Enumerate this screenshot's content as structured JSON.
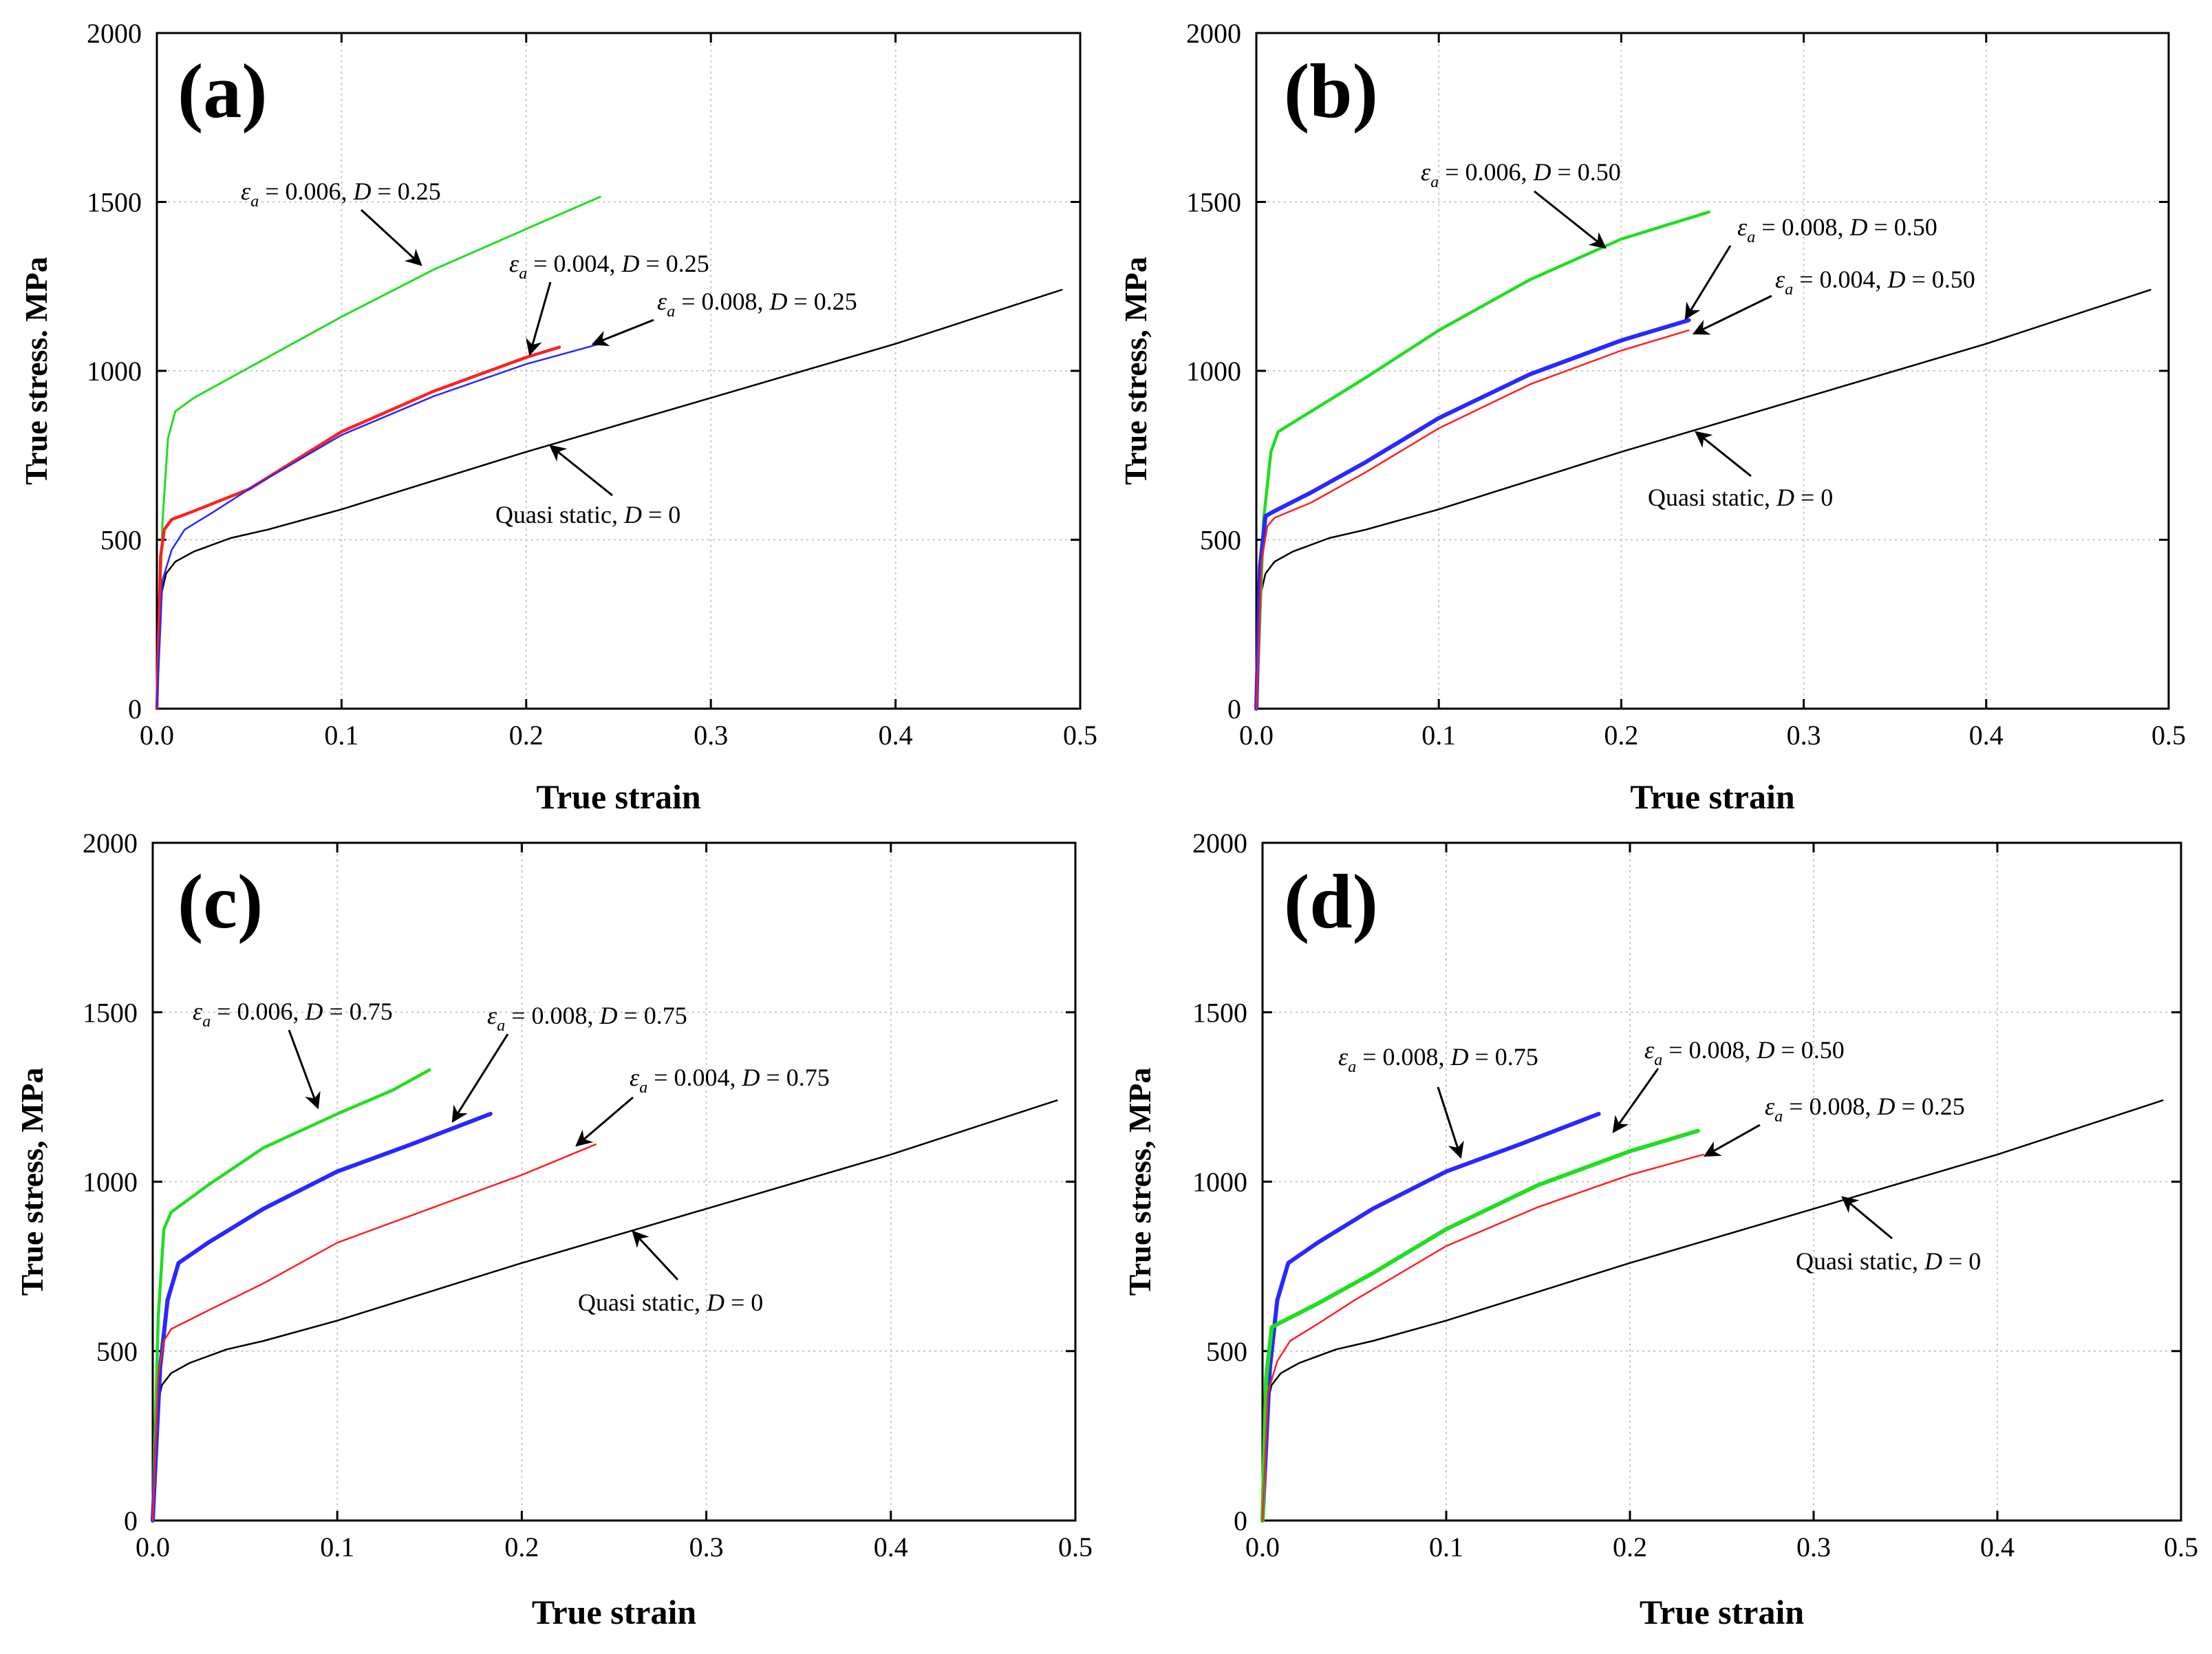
{
  "chart_data": [
    {
      "id": "a",
      "type": "line",
      "panel_label": "(a)",
      "xlabel": "True strain",
      "ylabel": "True stress. MPa",
      "xlim": [
        0,
        0.5
      ],
      "ylim": [
        0,
        2000
      ],
      "xticks": [
        "0.0",
        "0.1",
        "0.2",
        "0.3",
        "0.4",
        "0.5"
      ],
      "yticks": [
        "0",
        "500",
        "1000",
        "1500",
        "2000"
      ],
      "grid": true,
      "series": [
        {
          "name": "Quasi static, D = 0",
          "color": "#000000",
          "width": 2.5,
          "points": [
            [
              0,
              0
            ],
            [
              0.002,
              330
            ],
            [
              0.005,
              400
            ],
            [
              0.01,
              435
            ],
            [
              0.02,
              465
            ],
            [
              0.04,
              505
            ],
            [
              0.06,
              530
            ],
            [
              0.1,
              590
            ],
            [
              0.2,
              760
            ],
            [
              0.3,
              920
            ],
            [
              0.4,
              1080
            ],
            [
              0.49,
              1240
            ]
          ]
        },
        {
          "name": "εa = 0.006, D = 0.25",
          "color": "#22dd22",
          "width": 3,
          "points": [
            [
              0,
              0
            ],
            [
              0.003,
              550
            ],
            [
              0.006,
              800
            ],
            [
              0.01,
              880
            ],
            [
              0.02,
              920
            ],
            [
              0.05,
              1010
            ],
            [
              0.1,
              1160
            ],
            [
              0.15,
              1300
            ],
            [
              0.2,
              1420
            ],
            [
              0.24,
              1515
            ]
          ]
        },
        {
          "name": "εa = 0.004, D = 0.25",
          "color": "#ff2020",
          "width": 4.5,
          "points": [
            [
              0,
              0
            ],
            [
              0.002,
              450
            ],
            [
              0.004,
              530
            ],
            [
              0.008,
              560
            ],
            [
              0.02,
              585
            ],
            [
              0.05,
              650
            ],
            [
              0.1,
              820
            ],
            [
              0.15,
              940
            ],
            [
              0.2,
              1040
            ],
            [
              0.218,
              1070
            ]
          ]
        },
        {
          "name": "εa = 0.008, D = 0.25",
          "color": "#2828ff",
          "width": 2.5,
          "points": [
            [
              0,
              0
            ],
            [
              0.003,
              380
            ],
            [
              0.008,
              470
            ],
            [
              0.015,
              530
            ],
            [
              0.03,
              580
            ],
            [
              0.05,
              650
            ],
            [
              0.1,
              810
            ],
            [
              0.15,
              925
            ],
            [
              0.2,
              1020
            ],
            [
              0.24,
              1080
            ]
          ]
        }
      ],
      "annotations": [
        {
          "pre": "= 0.006, ",
          "d": "D",
          "post": " = 0.25"
        },
        {
          "pre": "= 0.004, ",
          "d": "D",
          "post": " = 0.25"
        },
        {
          "pre": "= 0.008, ",
          "d": "D",
          "post": " = 0.25"
        },
        {
          "pre": "Quasi static, ",
          "d": "D",
          "post": " = 0"
        }
      ]
    },
    {
      "id": "b",
      "type": "line",
      "panel_label": "(b)",
      "xlabel": "True strain",
      "ylabel": "True stress, MPa",
      "xlim": [
        0,
        0.5
      ],
      "ylim": [
        0,
        2000
      ],
      "xticks": [
        "0.0",
        "0.1",
        "0.2",
        "0.3",
        "0.4",
        "0.5"
      ],
      "yticks": [
        "0",
        "500",
        "1000",
        "1500",
        "2000"
      ],
      "grid": true,
      "series": [
        {
          "name": "Quasi static, D = 0",
          "color": "#000000",
          "width": 2.5,
          "points": [
            [
              0,
              0
            ],
            [
              0.002,
              330
            ],
            [
              0.005,
              400
            ],
            [
              0.01,
              435
            ],
            [
              0.02,
              465
            ],
            [
              0.04,
              505
            ],
            [
              0.06,
              530
            ],
            [
              0.1,
              590
            ],
            [
              0.2,
              760
            ],
            [
              0.3,
              920
            ],
            [
              0.4,
              1080
            ],
            [
              0.49,
              1240
            ]
          ]
        },
        {
          "name": "εa = 0.006, D = 0.50",
          "color": "#22dd22",
          "width": 4.5,
          "points": [
            [
              0,
              0
            ],
            [
              0.004,
              560
            ],
            [
              0.008,
              760
            ],
            [
              0.012,
              820
            ],
            [
              0.03,
              880
            ],
            [
              0.06,
              980
            ],
            [
              0.1,
              1120
            ],
            [
              0.15,
              1270
            ],
            [
              0.2,
              1390
            ],
            [
              0.248,
              1470
            ]
          ]
        },
        {
          "name": "εa = 0.008, D = 0.50",
          "color": "#2828ff",
          "width": 6,
          "points": [
            [
              0,
              0
            ],
            [
              0.002,
              420
            ],
            [
              0.005,
              570
            ],
            [
              0.01,
              585
            ],
            [
              0.03,
              640
            ],
            [
              0.06,
              730
            ],
            [
              0.1,
              860
            ],
            [
              0.15,
              990
            ],
            [
              0.2,
              1090
            ],
            [
              0.237,
              1150
            ]
          ]
        },
        {
          "name": "εa = 0.004, D = 0.50",
          "color": "#ff2020",
          "width": 2.5,
          "points": [
            [
              0,
              0
            ],
            [
              0.003,
              440
            ],
            [
              0.006,
              540
            ],
            [
              0.01,
              565
            ],
            [
              0.03,
              610
            ],
            [
              0.06,
              700
            ],
            [
              0.1,
              830
            ],
            [
              0.15,
              960
            ],
            [
              0.2,
              1060
            ],
            [
              0.237,
              1120
            ]
          ]
        }
      ],
      "annotations": [
        {
          "pre": "= 0.006, ",
          "d": "D",
          "post": " = 0.50"
        },
        {
          "pre": "= 0.008, ",
          "d": "D",
          "post": " = 0.50"
        },
        {
          "pre": "= 0.004, ",
          "d": "D",
          "post": " = 0.50"
        },
        {
          "pre": "Quasi static, ",
          "d": "D",
          "post": " = 0"
        }
      ]
    },
    {
      "id": "c",
      "type": "line",
      "panel_label": "(c)",
      "xlabel": "True strain",
      "ylabel": "True stress, MPa",
      "xlim": [
        0,
        0.5
      ],
      "ylim": [
        0,
        2000
      ],
      "xticks": [
        "0.0",
        "0.1",
        "0.2",
        "0.3",
        "0.4",
        "0.5"
      ],
      "yticks": [
        "0",
        "500",
        "1000",
        "1500",
        "2000"
      ],
      "grid": true,
      "series": [
        {
          "name": "Quasi static, D = 0",
          "color": "#000000",
          "width": 2.5,
          "points": [
            [
              0,
              0
            ],
            [
              0.002,
              330
            ],
            [
              0.005,
              400
            ],
            [
              0.01,
              435
            ],
            [
              0.02,
              465
            ],
            [
              0.04,
              505
            ],
            [
              0.06,
              530
            ],
            [
              0.1,
              590
            ],
            [
              0.2,
              760
            ],
            [
              0.3,
              920
            ],
            [
              0.4,
              1080
            ],
            [
              0.49,
              1240
            ]
          ]
        },
        {
          "name": "εa = 0.006, D = 0.75",
          "color": "#22dd22",
          "width": 4.5,
          "points": [
            [
              0,
              0
            ],
            [
              0.003,
              600
            ],
            [
              0.006,
              860
            ],
            [
              0.01,
              910
            ],
            [
              0.03,
              990
            ],
            [
              0.06,
              1100
            ],
            [
              0.1,
              1200
            ],
            [
              0.13,
              1270
            ],
            [
              0.15,
              1330
            ]
          ]
        },
        {
          "name": "εa = 0.008, D = 0.75",
          "color": "#2828ff",
          "width": 6,
          "points": [
            [
              0,
              0
            ],
            [
              0.004,
              450
            ],
            [
              0.008,
              650
            ],
            [
              0.014,
              760
            ],
            [
              0.03,
              820
            ],
            [
              0.06,
              920
            ],
            [
              0.1,
              1030
            ],
            [
              0.14,
              1110
            ],
            [
              0.183,
              1200
            ]
          ]
        },
        {
          "name": "εa = 0.004, D = 0.75",
          "color": "#ff2020",
          "width": 2.5,
          "points": [
            [
              0,
              0
            ],
            [
              0.003,
              430
            ],
            [
              0.006,
              530
            ],
            [
              0.01,
              565
            ],
            [
              0.03,
              620
            ],
            [
              0.06,
              700
            ],
            [
              0.1,
              820
            ],
            [
              0.15,
              920
            ],
            [
              0.2,
              1020
            ],
            [
              0.24,
              1110
            ]
          ]
        }
      ],
      "annotations": [
        {
          "pre": "= 0.006, ",
          "d": "D",
          "post": " = 0.75"
        },
        {
          "pre": "= 0.008, ",
          "d": "D",
          "post": " = 0.75"
        },
        {
          "pre": "= 0.004, ",
          "d": "D",
          "post": " = 0.75"
        },
        {
          "pre": "Quasi static, ",
          "d": "D",
          "post": " = 0"
        }
      ]
    },
    {
      "id": "d",
      "type": "line",
      "panel_label": "(d)",
      "xlabel": "True strain",
      "ylabel": "True stress, MPa",
      "xlim": [
        0,
        0.5
      ],
      "ylim": [
        0,
        2000
      ],
      "xticks": [
        "0.0",
        "0.1",
        "0.2",
        "0.3",
        "0.4",
        "0.5"
      ],
      "yticks": [
        "0",
        "500",
        "1000",
        "1500",
        "2000"
      ],
      "grid": true,
      "series": [
        {
          "name": "Quasi static, D = 0",
          "color": "#000000",
          "width": 2.5,
          "points": [
            [
              0,
              0
            ],
            [
              0.002,
              330
            ],
            [
              0.005,
              400
            ],
            [
              0.01,
              435
            ],
            [
              0.02,
              465
            ],
            [
              0.04,
              505
            ],
            [
              0.06,
              530
            ],
            [
              0.1,
              590
            ],
            [
              0.2,
              760
            ],
            [
              0.3,
              920
            ],
            [
              0.4,
              1080
            ],
            [
              0.49,
              1240
            ]
          ]
        },
        {
          "name": "εa = 0.008, D = 0.75",
          "color": "#2828ff",
          "width": 6,
          "points": [
            [
              0,
              0
            ],
            [
              0.004,
              450
            ],
            [
              0.008,
              650
            ],
            [
              0.014,
              760
            ],
            [
              0.03,
              820
            ],
            [
              0.06,
              920
            ],
            [
              0.1,
              1030
            ],
            [
              0.14,
              1110
            ],
            [
              0.183,
              1200
            ]
          ]
        },
        {
          "name": "εa = 0.008, D = 0.50",
          "color": "#22dd22",
          "width": 6,
          "points": [
            [
              0,
              0
            ],
            [
              0.002,
              420
            ],
            [
              0.005,
              570
            ],
            [
              0.01,
              585
            ],
            [
              0.03,
              640
            ],
            [
              0.06,
              730
            ],
            [
              0.1,
              860
            ],
            [
              0.15,
              990
            ],
            [
              0.2,
              1090
            ],
            [
              0.237,
              1150
            ]
          ]
        },
        {
          "name": "εa = 0.008, D = 0.25",
          "color": "#ff2020",
          "width": 2.5,
          "points": [
            [
              0,
              0
            ],
            [
              0.003,
              380
            ],
            [
              0.008,
              470
            ],
            [
              0.015,
              530
            ],
            [
              0.03,
              580
            ],
            [
              0.05,
              650
            ],
            [
              0.1,
              810
            ],
            [
              0.15,
              925
            ],
            [
              0.2,
              1020
            ],
            [
              0.24,
              1080
            ]
          ]
        }
      ],
      "annotations": [
        {
          "pre": "= 0.008, ",
          "d": "D",
          "post": " = 0.75"
        },
        {
          "pre": "= 0.008, ",
          "d": "D",
          "post": " = 0.50"
        },
        {
          "pre": "= 0.008, ",
          "d": "D",
          "post": " = 0.25"
        },
        {
          "pre": "Quasi static, ",
          "d": "D",
          "post": " = 0"
        }
      ]
    }
  ]
}
